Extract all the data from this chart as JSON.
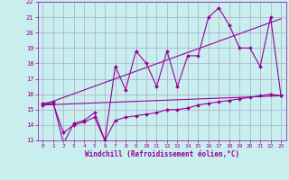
{
  "xlabel": "Windchill (Refroidissement éolien,°C)",
  "background_color": "#c8eeee",
  "grid_color": "#aaaacc",
  "line_color": "#990099",
  "xlim": [
    -0.5,
    23.5
  ],
  "ylim": [
    13,
    22
  ],
  "yticks": [
    13,
    14,
    15,
    16,
    17,
    18,
    19,
    20,
    21,
    22
  ],
  "xticks": [
    0,
    1,
    2,
    3,
    4,
    5,
    6,
    7,
    8,
    9,
    10,
    11,
    12,
    13,
    14,
    15,
    16,
    17,
    18,
    19,
    20,
    21,
    22,
    23
  ],
  "series": [
    {
      "x": [
        0,
        1,
        2,
        3,
        4,
        5,
        6,
        7,
        8,
        9,
        10,
        11,
        12,
        13,
        14,
        15,
        16,
        17,
        18,
        19,
        20,
        21,
        22,
        23
      ],
      "y": [
        15.4,
        15.5,
        12.8,
        14.1,
        14.3,
        14.8,
        13.0,
        17.8,
        16.3,
        18.8,
        18.0,
        16.5,
        18.8,
        16.5,
        18.5,
        18.5,
        21.0,
        21.6,
        20.5,
        19.0,
        19.0,
        17.8,
        21.0,
        15.9
      ]
    },
    {
      "x": [
        0,
        1,
        2,
        3,
        4,
        5,
        6,
        7,
        8,
        9,
        10,
        11,
        12,
        13,
        14,
        15,
        16,
        17,
        18,
        19,
        20,
        21,
        22,
        23
      ],
      "y": [
        15.3,
        15.4,
        13.5,
        14.0,
        14.2,
        14.5,
        13.0,
        14.3,
        14.5,
        14.6,
        14.7,
        14.8,
        15.0,
        15.0,
        15.1,
        15.3,
        15.4,
        15.5,
        15.6,
        15.7,
        15.8,
        15.9,
        16.0,
        15.9
      ]
    },
    {
      "x": [
        0,
        23
      ],
      "y": [
        15.3,
        15.9
      ]
    },
    {
      "x": [
        0,
        23
      ],
      "y": [
        15.3,
        20.9
      ]
    }
  ]
}
